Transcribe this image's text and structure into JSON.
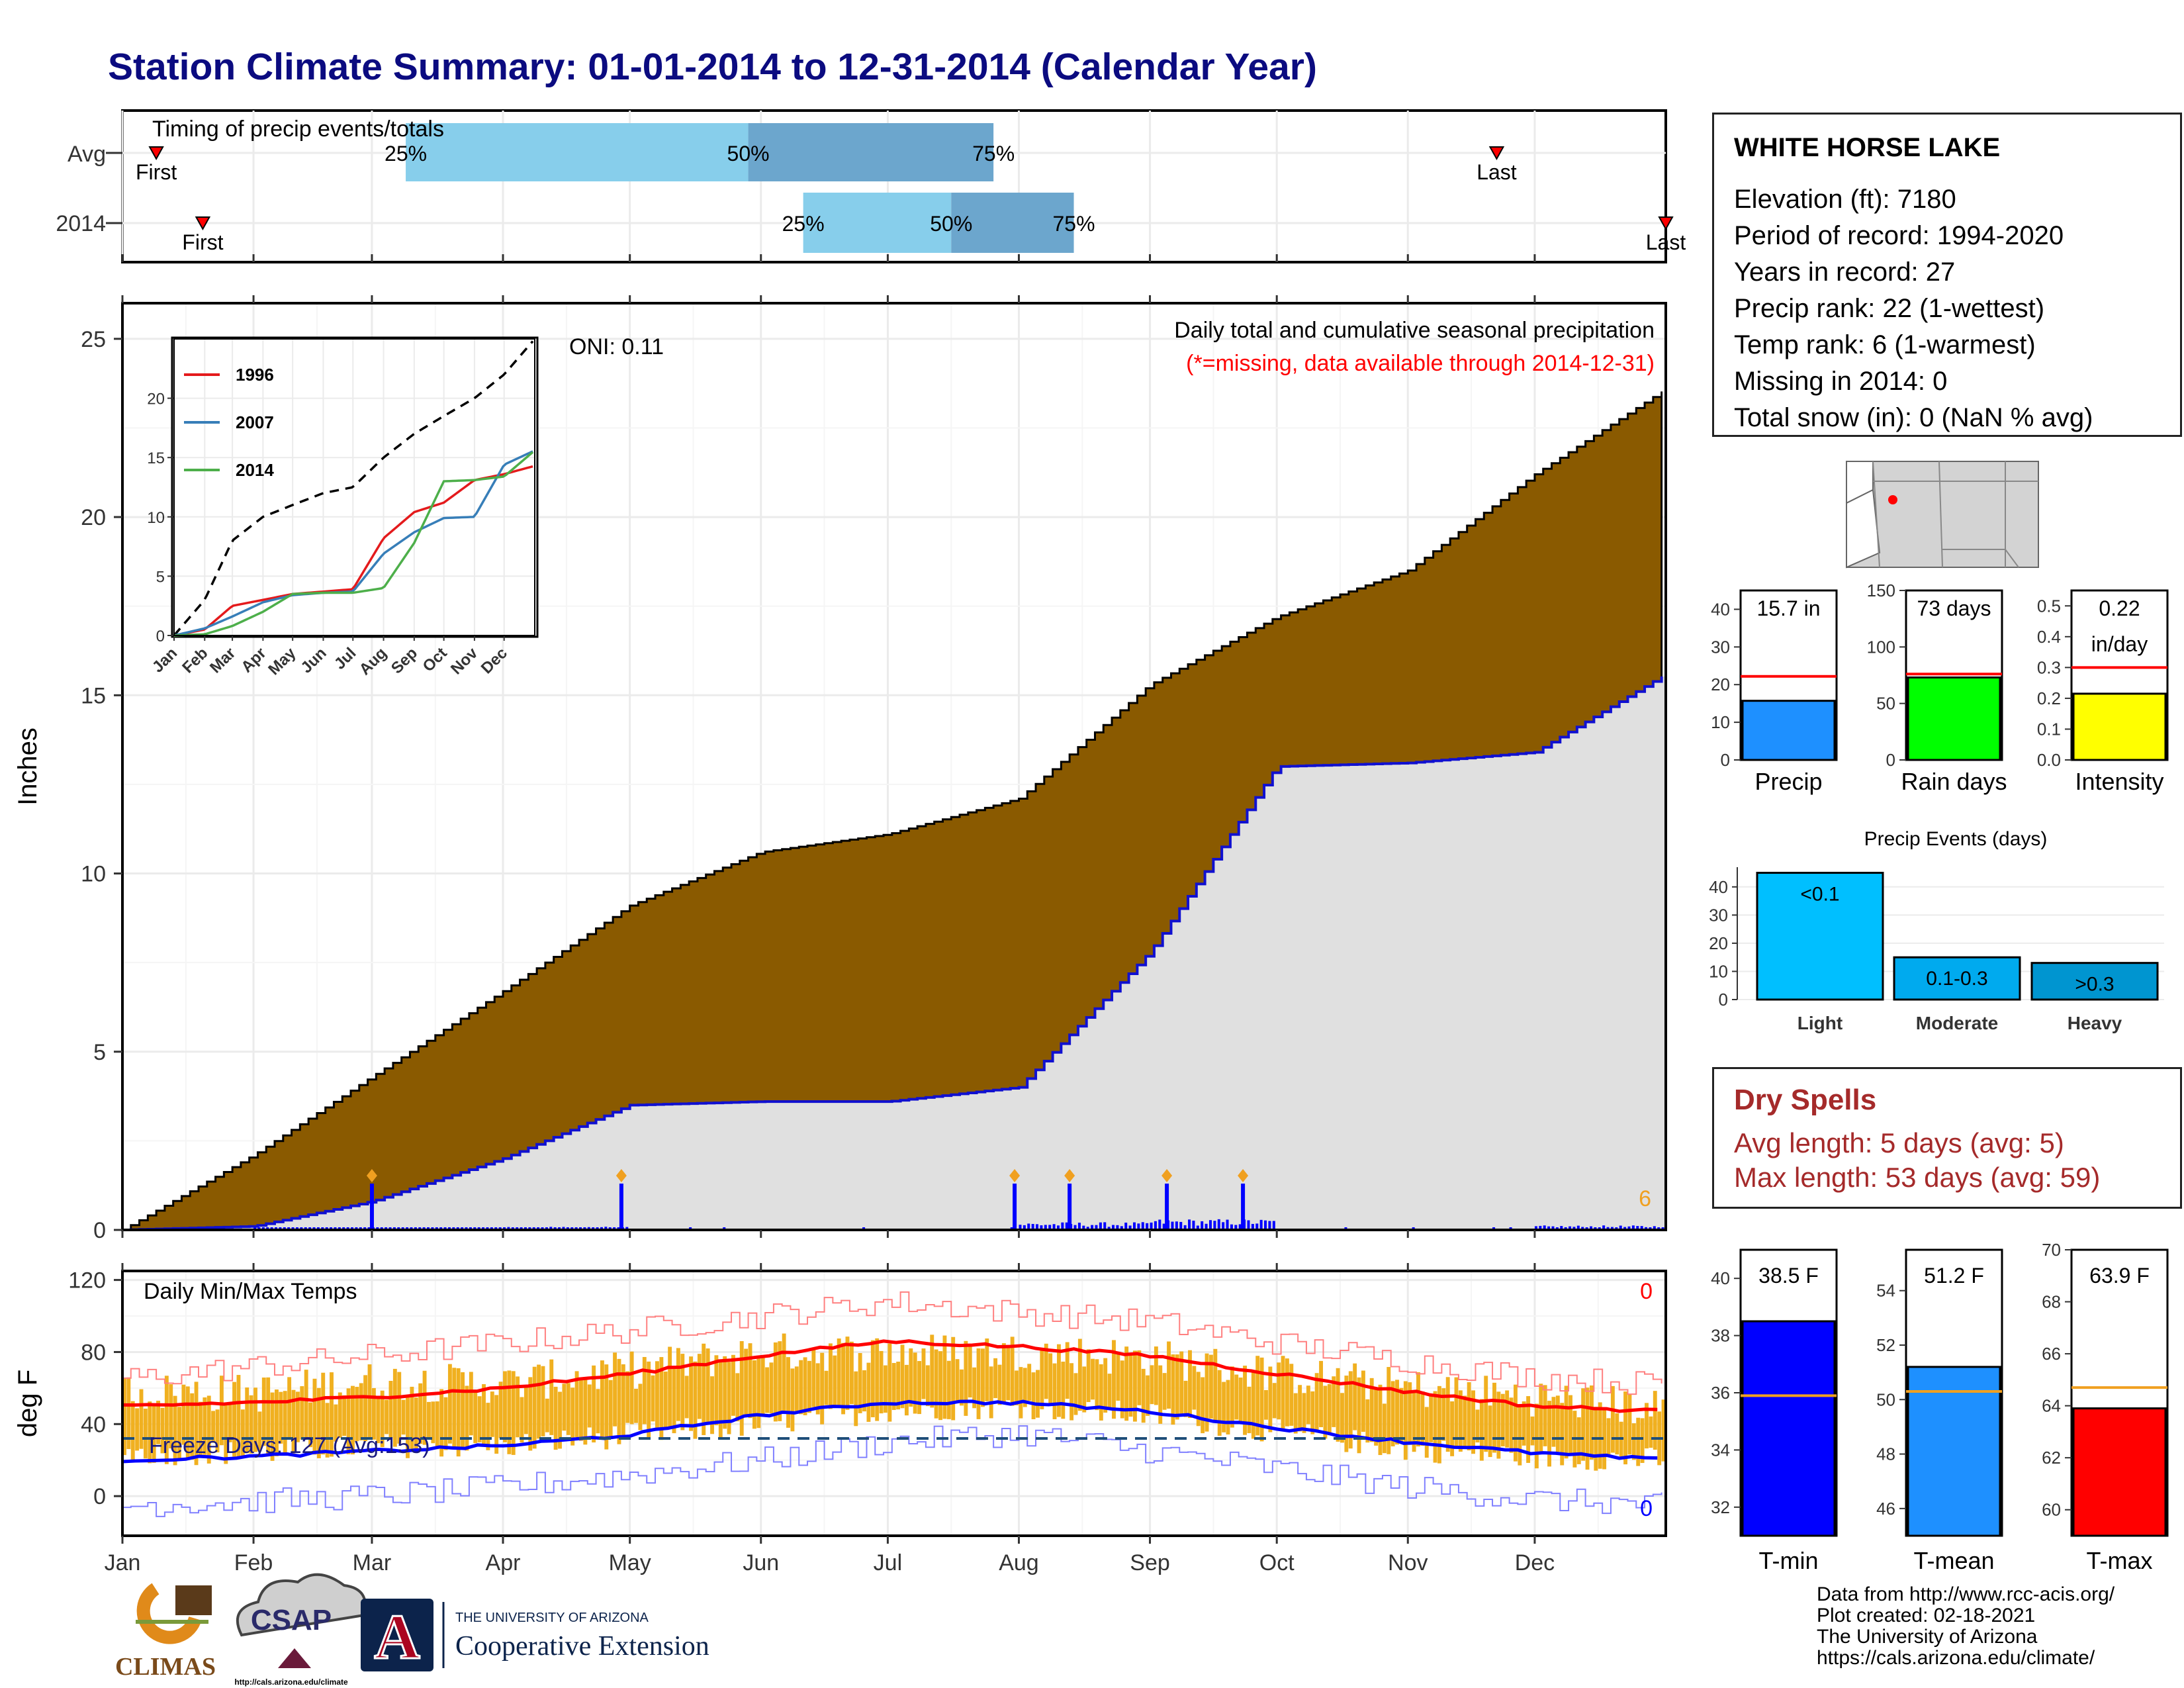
{
  "title": "Station Climate Summary: 01-01-2014 to 12-31-2014 (Calendar Year)",
  "colors": {
    "title": "#0b0b80",
    "precip_fill": "#8a5a00",
    "cum_line": "#1010d0",
    "bg_cum": "#e0e0e0",
    "dry_red": "#a52a2a",
    "t_orange": "#f0b020"
  },
  "timing": {
    "title": "Timing of precip events/totals",
    "rows": [
      "Avg",
      "2014"
    ],
    "avg": {
      "first": "First",
      "last": "Last",
      "p25": "25%",
      "p50": "50%",
      "p75": "75%",
      "first_day": 8,
      "last_day": 325,
      "q25_day": 67,
      "q50_day": 148,
      "q75_day": 206
    },
    "y2014": {
      "first": "First",
      "last": "Last",
      "p25": "25%",
      "p50": "50%",
      "p75": "75%",
      "first_day": 19,
      "last_day": 365,
      "q25_day": 161,
      "q50_day": 196,
      "q75_day": 225
    }
  },
  "main": {
    "ylabel": "Inches",
    "ticks": [
      "0",
      "5",
      "10",
      "15",
      "20",
      "25"
    ],
    "oni": "ONI: 0.11",
    "label1": "Daily total and cumulative seasonal precipitation",
    "label2": "(*=missing, data available through 2014-12-31)",
    "count_label": "6"
  },
  "inset": {
    "ticks": [
      "0",
      "5",
      "10",
      "15",
      "20"
    ],
    "months": [
      "Jan",
      "Feb",
      "Mar",
      "Apr",
      "May",
      "Jun",
      "Jul",
      "Aug",
      "Sep",
      "Oct",
      "Nov",
      "Dec"
    ],
    "legend": [
      {
        "name": "1996",
        "color": "#e41a1c"
      },
      {
        "name": "2007",
        "color": "#377eb8"
      },
      {
        "name": "2014",
        "color": "#4daf4a"
      }
    ]
  },
  "temps": {
    "ylabel": "deg F",
    "title": "Daily Min/Max Temps",
    "ticks": [
      "0",
      "40",
      "80",
      "120"
    ],
    "freeze": "Freeze Days: 127 (Avg:153)",
    "max_count": "0",
    "min_count": "0"
  },
  "months": [
    "Jan",
    "Feb",
    "Mar",
    "Apr",
    "May",
    "Jun",
    "Jul",
    "Aug",
    "Sep",
    "Oct",
    "Nov",
    "Dec"
  ],
  "station": {
    "name": "WHITE HORSE LAKE",
    "lines": [
      "Elevation (ft): 7180",
      "Period of record: 1994-2020",
      "Years in record: 27",
      "Precip rank: 22 (1-wettest)",
      "Temp rank: 6 (1-warmest)",
      "Missing in 2014: 0",
      "Total snow (in): 0 (NaN % avg)"
    ]
  },
  "summary_bars": [
    {
      "label": "Precip",
      "value_text": "15.7 in",
      "value": 15.7,
      "avg": 22.2,
      "ticks": [
        "0",
        "10",
        "20",
        "30",
        "40"
      ],
      "max": 45,
      "color": "#1e90ff"
    },
    {
      "label": "Rain days",
      "value_text": "73 days",
      "value": 73,
      "avg": 76,
      "ticks": [
        "0",
        "50",
        "100",
        "150"
      ],
      "max": 150,
      "color": "#00ff00"
    },
    {
      "label": "Intensity",
      "value_text": "0.22",
      "value_text2": "in/day",
      "value": 0.215,
      "avg": 0.3,
      "ticks": [
        "0.0",
        "0.1",
        "0.2",
        "0.3",
        "0.4",
        "0.5"
      ],
      "max": 0.55,
      "color": "#ffff00"
    }
  ],
  "events": {
    "title": "Precip Events (days)",
    "ticks": [
      "0",
      "10",
      "20",
      "30",
      "40"
    ],
    "bars": [
      {
        "label": "Light",
        "text": "<0.1",
        "value": 45,
        "color": "#00bfff"
      },
      {
        "label": "Moderate",
        "text": "0.1-0.3",
        "value": 15,
        "color": "#00aaee"
      },
      {
        "label": "Heavy",
        "text": ">0.3",
        "value": 13,
        "color": "#0095d0"
      }
    ]
  },
  "dry": {
    "title": "Dry Spells",
    "line1": "Avg length: 5 days (avg: 5)",
    "line2": "Max length: 53 days (avg: 59)"
  },
  "temp_bars": [
    {
      "label": "T-min",
      "value_text": "38.5 F",
      "value": 38.5,
      "avg": 35.9,
      "min": 31,
      "max": 41,
      "ticks": [
        "32",
        "34",
        "36",
        "38",
        "40"
      ],
      "color": "#0000ff"
    },
    {
      "label": "T-mean",
      "value_text": "51.2 F",
      "value": 51.2,
      "avg": 50.3,
      "min": 45,
      "max": 55.5,
      "ticks": [
        "46",
        "48",
        "50",
        "52",
        "54"
      ],
      "color": "#1e90ff"
    },
    {
      "label": "T-max",
      "value_text": "63.9 F",
      "value": 63.9,
      "avg": 64.7,
      "min": 59,
      "max": 70,
      "ticks": [
        "60",
        "62",
        "64",
        "66",
        "68",
        "70"
      ],
      "color": "#ff0000"
    }
  ],
  "footer": {
    "lines": [
      "Data from http://www.rcc-acis.org/",
      "Plot created: 02-18-2021",
      "The University of Arizona",
      "https://cals.arizona.edu/climate/"
    ],
    "climas": "CLIMAS",
    "csap": "CSAP",
    "csap_url": "http://cals.arizona.edu/climate",
    "ua_top": "THE UNIVERSITY OF ARIZONA",
    "ua_bottom": "Cooperative Extension",
    "ua_letter": "A"
  },
  "chart_data": [
    {
      "type": "area",
      "title": "Daily total and cumulative seasonal precipitation",
      "ylabel": "Inches",
      "ylim": [
        0,
        26
      ],
      "x": [
        "Jan",
        "Feb",
        "Mar",
        "Apr",
        "May",
        "Jun",
        "Jul",
        "Aug",
        "Sep",
        "Oct",
        "Nov",
        "Dec",
        "end"
      ],
      "series": [
        {
          "values": [
            0,
            2.1,
            4.3,
            6.7,
            9.1,
            10.6,
            11.1,
            12.1,
            15.3,
            17.2,
            18.5,
            21.2,
            23.6
          ]
        },
        {
          "values": [
            0,
            0.1,
            0.8,
            2.0,
            3.5,
            3.6,
            3.6,
            4.0,
            7.8,
            13.0,
            13.1,
            13.4,
            15.6
          ]
        }
      ]
    },
    {
      "type": "line",
      "ylim": [
        0,
        25
      ],
      "x": [
        "Jan",
        "Feb",
        "Mar",
        "Apr",
        "May",
        "Jun",
        "Jul",
        "Aug",
        "Sep",
        "Oct",
        "Nov",
        "Dec",
        "end"
      ],
      "series": [
        {
          "values": [
            0,
            3,
            8,
            10,
            11,
            12,
            12.5,
            15,
            17,
            18.5,
            20,
            22,
            25
          ]
        },
        {
          "name": "1996",
          "values": [
            0,
            0.5,
            2.5,
            3,
            3.5,
            3.7,
            3.9,
            8.2,
            10.4,
            11.2,
            13.1,
            13.6,
            14.3
          ]
        },
        {
          "name": "2007",
          "values": [
            0,
            0.6,
            1.6,
            2.8,
            3.4,
            3.6,
            3.7,
            6.9,
            8.7,
            9.9,
            10,
            14.4,
            15.6
          ]
        },
        {
          "name": "2014",
          "values": [
            0,
            0.1,
            0.8,
            2.0,
            3.5,
            3.6,
            3.6,
            4.0,
            7.8,
            13.0,
            13.1,
            13.4,
            15.6
          ]
        }
      ]
    },
    {
      "type": "line",
      "title": "Daily Min/Max Temps",
      "ylabel": "deg F",
      "ylim": [
        -20,
        125
      ],
      "x": [
        "Jan",
        "Feb",
        "Mar",
        "Apr",
        "May",
        "Jun",
        "Jul",
        "Aug",
        "Sep",
        "Oct",
        "Nov",
        "Dec",
        "end"
      ],
      "series": [
        {
          "values": [
            50,
            52,
            55,
            60,
            68,
            78,
            86,
            83,
            78,
            68,
            58,
            50,
            47
          ]
        },
        {
          "values": [
            20,
            22,
            25,
            28,
            34,
            45,
            52,
            52,
            47,
            38,
            30,
            24,
            20
          ]
        },
        {
          "values": [
            65,
            72,
            78,
            85,
            92,
            100,
            108,
            102,
            97,
            85,
            75,
            66,
            62
          ]
        },
        {
          "values": [
            -5,
            -3,
            0,
            5,
            12,
            20,
            30,
            35,
            25,
            15,
            5,
            -2,
            -5
          ]
        },
        {
          "values": [
            58,
            57,
            64,
            62,
            70,
            80,
            80,
            80,
            77,
            68,
            60,
            55,
            48
          ]
        },
        {
          "values": [
            24,
            24,
            28,
            28,
            34,
            40,
            48,
            50,
            45,
            36,
            26,
            22,
            20
          ]
        }
      ],
      "freeze_line": 32
    }
  ]
}
